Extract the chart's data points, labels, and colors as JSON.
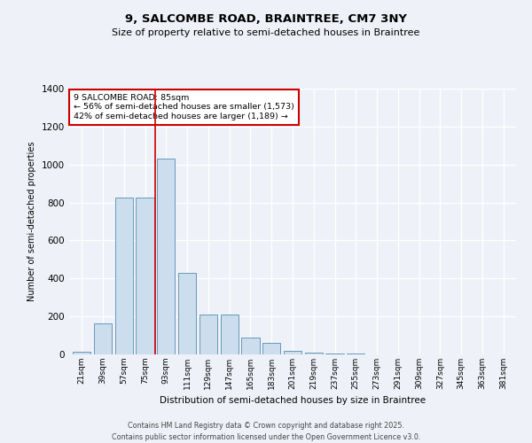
{
  "title_line1": "9, SALCOMBE ROAD, BRAINTREE, CM7 3NY",
  "title_line2": "Size of property relative to semi-detached houses in Braintree",
  "xlabel": "Distribution of semi-detached houses by size in Braintree",
  "ylabel": "Number of semi-detached properties",
  "bar_labels": [
    "21sqm",
    "39sqm",
    "57sqm",
    "75sqm",
    "93sqm",
    "111sqm",
    "129sqm",
    "147sqm",
    "165sqm",
    "183sqm",
    "201sqm",
    "219sqm",
    "237sqm",
    "255sqm",
    "273sqm",
    "291sqm",
    "309sqm",
    "327sqm",
    "345sqm",
    "363sqm",
    "381sqm"
  ],
  "bar_values": [
    15,
    165,
    825,
    825,
    1030,
    430,
    210,
    210,
    90,
    60,
    20,
    10,
    5,
    5,
    0,
    0,
    0,
    0,
    0,
    0,
    0
  ],
  "property_bin_index": 3,
  "annotation_title": "9 SALCOMBE ROAD: 85sqm",
  "annotation_line2": "← 56% of semi-detached houses are smaller (1,573)",
  "annotation_line3": "42% of semi-detached houses are larger (1,189) →",
  "bar_color": "#ccdded",
  "bar_edge_color": "#6699bb",
  "highlight_line_color": "#cc0000",
  "annotation_box_facecolor": "#ffffff",
  "annotation_box_edgecolor": "#cc0000",
  "ylim": [
    0,
    1400
  ],
  "yticks": [
    0,
    200,
    400,
    600,
    800,
    1000,
    1200,
    1400
  ],
  "bg_color": "#eef2f8",
  "grid_color": "#ffffff",
  "footer_line1": "Contains HM Land Registry data © Crown copyright and database right 2025.",
  "footer_line2": "Contains public sector information licensed under the Open Government Licence v3.0."
}
